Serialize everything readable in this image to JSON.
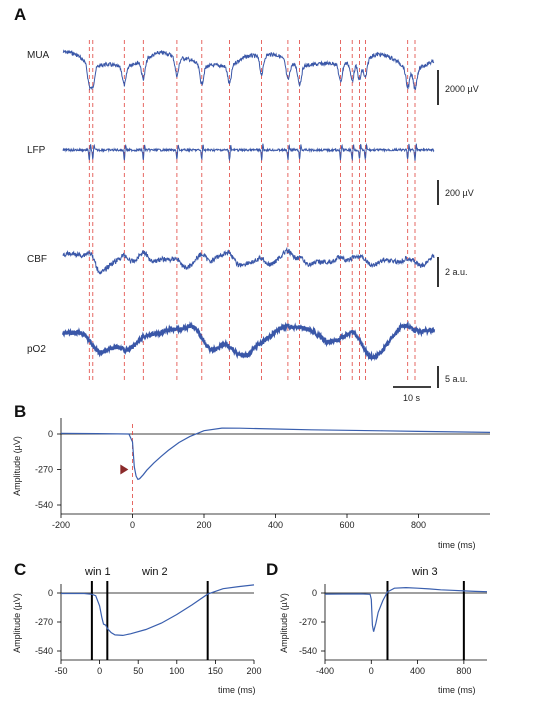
{
  "panels": {
    "a": "A",
    "b": "B",
    "c": "C",
    "d": "D"
  },
  "panel_a": {
    "traces": [
      {
        "label": "MUA",
        "scale": "2000 µV"
      },
      {
        "label": "LFP",
        "scale": "200 µV"
      },
      {
        "label": "CBF",
        "scale": "2 a.u."
      },
      {
        "label": "pO2",
        "scale": "5 a.u."
      }
    ],
    "time_scale": "10 s",
    "event_times_s": [
      0,
      1.2,
      12,
      18.5,
      30,
      38.5,
      48,
      59,
      68,
      72,
      86,
      90,
      92.5,
      94.5,
      109,
      111.5
    ]
  },
  "colors": {
    "trace": "#3a57a8",
    "event_line": "#e0433d",
    "marker": "#8b2a2a"
  },
  "chart_data": [
    {
      "type": "line",
      "panel": "B",
      "ylabel": "Amplitude (µV)",
      "xlabel": "time (ms)",
      "xlim": [
        -200,
        1000
      ],
      "ylim": [
        -620,
        60
      ],
      "x_ticks": [
        -200,
        0,
        200,
        400,
        600,
        800
      ],
      "y_ticks": [
        0,
        -270,
        -540
      ],
      "event_marker_time_ms": 0,
      "arrow_marker": {
        "x_ms": -20,
        "amplitude_uV": -270
      },
      "series": [
        {
          "x": [
            -200,
            -100,
            -10,
            0,
            5,
            10,
            15,
            20,
            30,
            40,
            60,
            80,
            100,
            130,
            160,
            200,
            250,
            300,
            400,
            500,
            600,
            700,
            800,
            900,
            1000
          ],
          "y": [
            5,
            3,
            0,
            -60,
            -250,
            -320,
            -345,
            -340,
            -310,
            -275,
            -220,
            -170,
            -125,
            -65,
            -20,
            25,
            45,
            44,
            38,
            32,
            28,
            24,
            20,
            16,
            12
          ]
        }
      ]
    },
    {
      "type": "line",
      "panel": "C",
      "ylabel": "Amplitude (µV)",
      "xlabel": "time (ms)",
      "xlim": [
        -50,
        200
      ],
      "ylim": [
        -630,
        60
      ],
      "x_ticks": [
        -50,
        0,
        50,
        100,
        150,
        200
      ],
      "y_ticks": [
        0,
        -270,
        -540
      ],
      "windows": [
        {
          "label": "win 1",
          "start_ms": -10,
          "end_ms": 10
        },
        {
          "label": "win 2",
          "start_ms": 10,
          "end_ms": 140
        }
      ],
      "series": [
        {
          "x": [
            -50,
            -20,
            -10,
            -5,
            0,
            3,
            5,
            8,
            10,
            15,
            20,
            30,
            40,
            60,
            80,
            100,
            120,
            140,
            160,
            180,
            200
          ],
          "y": [
            -5,
            -5,
            -12,
            -25,
            -120,
            -230,
            -290,
            -300,
            -330,
            -370,
            -390,
            -395,
            -380,
            -340,
            -280,
            -200,
            -110,
            -10,
            40,
            60,
            75
          ]
        }
      ]
    },
    {
      "type": "line",
      "panel": "D",
      "ylabel": "Amplitude (µV)",
      "xlabel": "time (ms)",
      "xlim": [
        -400,
        1000
      ],
      "ylim": [
        -630,
        60
      ],
      "x_ticks": [
        -400,
        0,
        400,
        800
      ],
      "y_ticks": [
        0,
        -270,
        -540
      ],
      "windows": [
        {
          "label": "win 3",
          "start_ms": 140,
          "end_ms": 800
        }
      ],
      "series": [
        {
          "x": [
            -400,
            -100,
            -10,
            0,
            10,
            20,
            40,
            60,
            100,
            140,
            200,
            300,
            400,
            500,
            600,
            700,
            800,
            900,
            1000
          ],
          "y": [
            -10,
            -8,
            -12,
            -60,
            -300,
            -360,
            -280,
            -180,
            -70,
            10,
            45,
            50,
            45,
            38,
            30,
            25,
            20,
            15,
            12
          ]
        }
      ]
    }
  ]
}
